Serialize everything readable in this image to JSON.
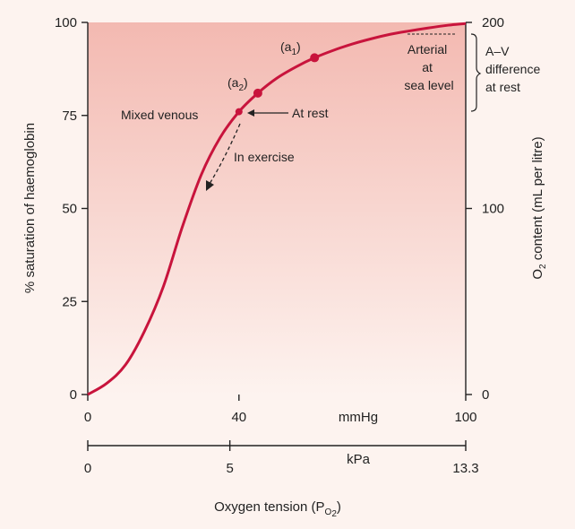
{
  "chart_data": {
    "type": "line",
    "series": [
      {
        "x": [
          0,
          5,
          10,
          15,
          20,
          25,
          30,
          35,
          40,
          45,
          50,
          55,
          60,
          65,
          70,
          75,
          80,
          85,
          90,
          95,
          100
        ],
        "y": [
          0,
          3,
          8,
          17,
          29,
          45,
          59,
          69,
          76,
          81,
          85,
          88,
          90.5,
          92.5,
          94.2,
          95.6,
          96.8,
          97.7,
          98.5,
          99.2,
          99.7
        ]
      }
    ],
    "xlim": [
      0,
      100
    ],
    "ylim": [
      0,
      100
    ],
    "y2lim": [
      0,
      200
    ],
    "xticks": [
      "0",
      "40",
      "100"
    ],
    "xtick_values": [
      0,
      40,
      100
    ],
    "x_unit": "mmHg",
    "x2_unit": "kPa",
    "x2_ticks": [
      "0",
      "5",
      "13.3"
    ],
    "x2_tick_values": [
      0,
      5,
      13.3
    ],
    "yticks": [
      "0",
      "25",
      "50",
      "75",
      "100"
    ],
    "ytick_values": [
      0,
      25,
      50,
      75,
      100
    ],
    "y2ticks": [
      "0",
      "100",
      "200"
    ],
    "y2tick_values": [
      0,
      100,
      200
    ],
    "ylabel": "% saturation of haemoglobin",
    "y2label_main": "O",
    "y2label_sub": "2",
    "y2label_rest": " content (mL per litre)",
    "xlabel_main": "Oxygen tension (P",
    "xlabel_sub": "O",
    "xlabel_subsub": "2",
    "xlabel_end": ")",
    "points": [
      {
        "id": "a1",
        "x": 60,
        "y": 90.5,
        "label_pre": "(a",
        "label_sub": "1",
        "label_post": ")"
      },
      {
        "id": "a2",
        "x": 45,
        "y": 81,
        "label_pre": "(a",
        "label_sub": "2",
        "label_post": ")"
      },
      {
        "id": "venous",
        "x": 40,
        "y": 76,
        "label": "Mixed venous"
      }
    ],
    "annotations": {
      "at_rest": "At rest",
      "in_exercise": "In exercise",
      "arterial": [
        "Arterial",
        "at",
        "sea level"
      ],
      "av_difference": [
        "A–V",
        "difference",
        "at rest"
      ]
    },
    "grid": false,
    "colors": {
      "curve": "#c8143c",
      "fill_top": "#f3b9b1",
      "fill_bottom": "#fdf3ef"
    }
  }
}
